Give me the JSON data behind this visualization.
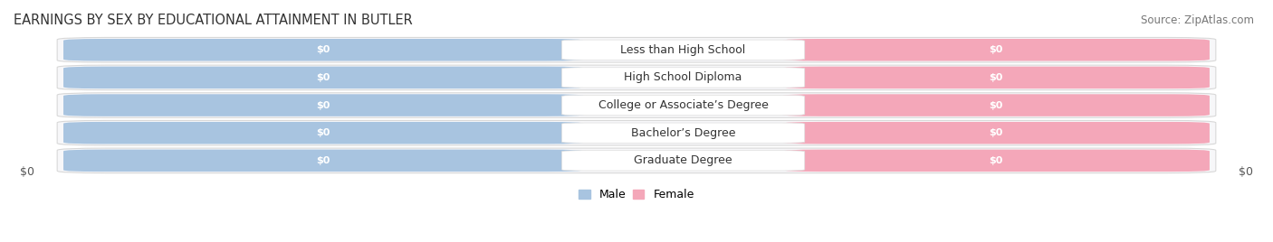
{
  "title": "EARNINGS BY SEX BY EDUCATIONAL ATTAINMENT IN BUTLER",
  "source": "Source: ZipAtlas.com",
  "categories": [
    "Less than High School",
    "High School Diploma",
    "College or Associate’s Degree",
    "Bachelor’s Degree",
    "Graduate Degree"
  ],
  "male_color": "#a8c4e0",
  "female_color": "#f4a7b9",
  "male_label": "Male",
  "female_label": "Female",
  "value_label": "$0",
  "row_bg_color": "#f0f0f2",
  "row_edge_color": "#d8d8d8",
  "label_bg_color": "#ffffff",
  "title_fontsize": 10.5,
  "source_fontsize": 8.5,
  "label_fontsize": 9,
  "value_fontsize": 8,
  "tick_fontsize": 9,
  "legend_fontsize": 9,
  "axis_label_left": "$0",
  "axis_label_right": "$0",
  "background_color": "#ffffff",
  "row_bg_light": "#f7f7f9",
  "separator_color": "#e0e0e0"
}
